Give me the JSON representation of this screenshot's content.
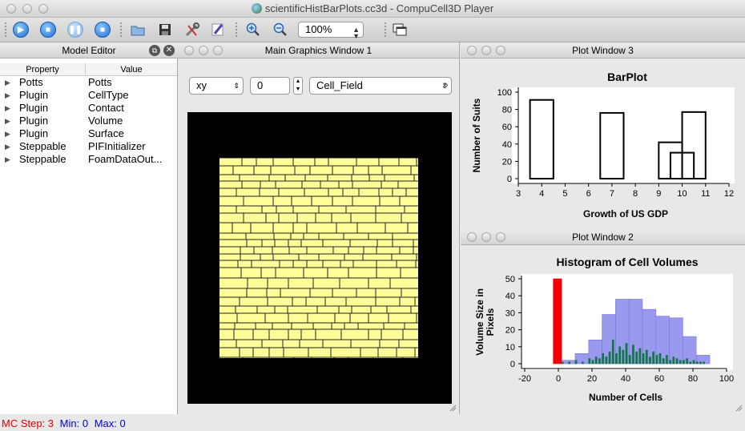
{
  "window": {
    "title": "scientificHistBarPlots.cc3d - CompuCell3D Player"
  },
  "toolbar": {
    "zoom": "100%"
  },
  "model_editor": {
    "title": "Model Editor",
    "col_property": "Property",
    "col_value": "Value",
    "items": [
      {
        "property": "Potts",
        "value": "Potts"
      },
      {
        "property": "Plugin",
        "value": "CellType"
      },
      {
        "property": "Plugin",
        "value": "Contact"
      },
      {
        "property": "Plugin",
        "value": "Volume"
      },
      {
        "property": "Plugin",
        "value": "Surface"
      },
      {
        "property": "Steppable",
        "value": "PIFInitializer"
      },
      {
        "property": "Steppable",
        "value": "FoamDataOut..."
      }
    ]
  },
  "graphics": {
    "title": "Main Graphics Window 1",
    "plane": "xy",
    "slice": "0",
    "field": "Cell_Field",
    "more": "»",
    "lattice_color": "#ffff99"
  },
  "plot3": {
    "title": "Plot Window 3",
    "chart_data": {
      "type": "bar",
      "title": "BarPlot",
      "xlabel": "Growth of US GDP",
      "ylabel": "Number of Suits",
      "xlim": [
        3,
        12
      ],
      "ylim": [
        0,
        100
      ],
      "xticks": [
        3,
        4,
        5,
        6,
        7,
        8,
        9,
        10,
        11,
        12
      ],
      "yticks": [
        0,
        20,
        40,
        60,
        80,
        100
      ],
      "bars": [
        {
          "x": 4.0,
          "value": 91
        },
        {
          "x": 7.0,
          "value": 76
        },
        {
          "x": 9.5,
          "value": 42
        },
        {
          "x": 10.0,
          "value": 30
        },
        {
          "x": 10.5,
          "value": 77
        }
      ]
    }
  },
  "plot2": {
    "title": "Plot Window 2",
    "chart_data": {
      "type": "bar",
      "title": "Histogram of Cell Volumes",
      "xlabel": "Number of Cells",
      "ylabel": "Volume Size in Pixels",
      "xlim": [
        -20,
        100
      ],
      "ylim": [
        0,
        50
      ],
      "xticks": [
        -20,
        0,
        20,
        40,
        60,
        80,
        100
      ],
      "yticks": [
        0,
        10,
        20,
        30,
        40,
        50
      ],
      "series": [
        {
          "color": "#ee0000",
          "bins": [
            {
              "x0": -3,
              "x1": 2,
              "value": 50
            }
          ]
        },
        {
          "color": "#9999ee",
          "bins": [
            {
              "x0": 2,
              "x1": 10,
              "value": 2
            },
            {
              "x0": 10,
              "x1": 18,
              "value": 6
            },
            {
              "x0": 18,
              "x1": 26,
              "value": 14
            },
            {
              "x0": 26,
              "x1": 34,
              "value": 29
            },
            {
              "x0": 34,
              "x1": 42,
              "value": 38
            },
            {
              "x0": 42,
              "x1": 50,
              "value": 38
            },
            {
              "x0": 50,
              "x1": 58,
              "value": 32
            },
            {
              "x0": 58,
              "x1": 66,
              "value": 28
            },
            {
              "x0": 66,
              "x1": 74,
              "value": 27
            },
            {
              "x0": 74,
              "x1": 82,
              "value": 16
            },
            {
              "x0": 82,
              "x1": 90,
              "value": 5
            }
          ]
        },
        {
          "color": "#117744",
          "bins": [
            {
              "x0": 2,
              "x1": 3,
              "value": 1
            },
            {
              "x0": 6,
              "x1": 7,
              "value": 1
            },
            {
              "x0": 10,
              "x1": 11,
              "value": 2
            },
            {
              "x0": 14,
              "x1": 15,
              "value": 1
            },
            {
              "x0": 18,
              "x1": 19,
              "value": 3
            },
            {
              "x0": 20,
              "x1": 21,
              "value": 2
            },
            {
              "x0": 22,
              "x1": 23,
              "value": 4
            },
            {
              "x0": 24,
              "x1": 25,
              "value": 3
            },
            {
              "x0": 26,
              "x1": 27,
              "value": 6
            },
            {
              "x0": 28,
              "x1": 29,
              "value": 4
            },
            {
              "x0": 30,
              "x1": 31,
              "value": 7
            },
            {
              "x0": 32,
              "x1": 33,
              "value": 14
            },
            {
              "x0": 34,
              "x1": 35,
              "value": 6
            },
            {
              "x0": 36,
              "x1": 37,
              "value": 10
            },
            {
              "x0": 38,
              "x1": 39,
              "value": 8
            },
            {
              "x0": 40,
              "x1": 41,
              "value": 12
            },
            {
              "x0": 42,
              "x1": 43,
              "value": 5
            },
            {
              "x0": 44,
              "x1": 45,
              "value": 11
            },
            {
              "x0": 46,
              "x1": 47,
              "value": 7
            },
            {
              "x0": 48,
              "x1": 49,
              "value": 9
            },
            {
              "x0": 50,
              "x1": 51,
              "value": 6
            },
            {
              "x0": 52,
              "x1": 53,
              "value": 8
            },
            {
              "x0": 54,
              "x1": 55,
              "value": 4
            },
            {
              "x0": 56,
              "x1": 57,
              "value": 7
            },
            {
              "x0": 58,
              "x1": 59,
              "value": 5
            },
            {
              "x0": 60,
              "x1": 61,
              "value": 6
            },
            {
              "x0": 62,
              "x1": 63,
              "value": 3
            },
            {
              "x0": 64,
              "x1": 65,
              "value": 5
            },
            {
              "x0": 66,
              "x1": 67,
              "value": 2
            },
            {
              "x0": 68,
              "x1": 69,
              "value": 4
            },
            {
              "x0": 70,
              "x1": 71,
              "value": 3
            },
            {
              "x0": 72,
              "x1": 73,
              "value": 2
            },
            {
              "x0": 74,
              "x1": 75,
              "value": 2
            },
            {
              "x0": 76,
              "x1": 77,
              "value": 3
            },
            {
              "x0": 78,
              "x1": 79,
              "value": 1
            },
            {
              "x0": 80,
              "x1": 81,
              "value": 2
            },
            {
              "x0": 82,
              "x1": 83,
              "value": 1
            },
            {
              "x0": 84,
              "x1": 85,
              "value": 1
            },
            {
              "x0": 86,
              "x1": 87,
              "value": 1
            }
          ]
        }
      ]
    }
  },
  "status": {
    "step": "MC Step: 3",
    "min": "Min: 0",
    "max": "Max: 0"
  }
}
